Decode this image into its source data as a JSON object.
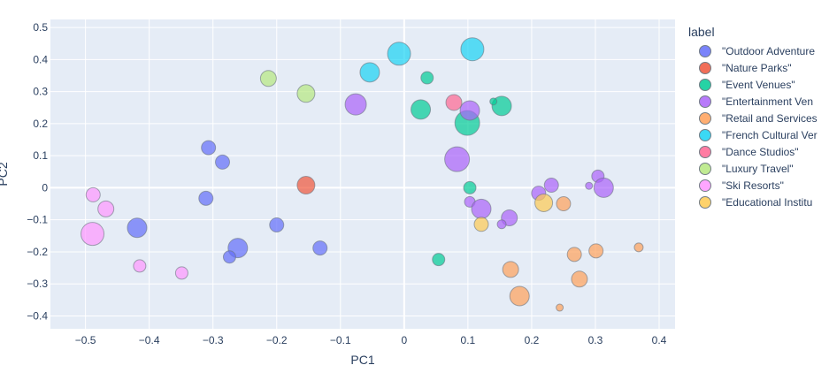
{
  "chart_data": {
    "type": "scatter",
    "xlabel": "PC1",
    "ylabel": "PC2",
    "xlim": [
      -0.555,
      0.425
    ],
    "ylim": [
      -0.44,
      0.525
    ],
    "x_ticks": [
      -0.5,
      -0.4,
      -0.3,
      -0.2,
      -0.1,
      0,
      0.1,
      0.2,
      0.3,
      0.4
    ],
    "x_tick_labels": [
      "−0.5",
      "−0.4",
      "−0.3",
      "−0.2",
      "−0.1",
      "0",
      "0.1",
      "0.2",
      "0.3",
      "0.4"
    ],
    "y_ticks": [
      -0.4,
      -0.3,
      -0.2,
      -0.1,
      0,
      0.1,
      0.2,
      0.3,
      0.4,
      0.5
    ],
    "y_tick_labels": [
      "−0.4",
      "−0.3",
      "−0.2",
      "−0.1",
      "0",
      "0.1",
      "0.2",
      "0.3",
      "0.4",
      "0.5"
    ],
    "grid": true,
    "legend_title": "label",
    "legend_position": "right",
    "series": [
      {
        "name": "\"Outdoor Adventures\"",
        "legend_text": "\"Outdoor Adventure",
        "color": "#636efa",
        "points": [
          [
            -0.307,
            0.125,
            8
          ],
          [
            -0.285,
            0.08,
            8
          ],
          [
            -0.311,
            -0.033,
            8
          ],
          [
            -0.419,
            -0.125,
            11
          ],
          [
            -0.2,
            -0.116,
            8
          ],
          [
            -0.261,
            -0.188,
            11
          ],
          [
            -0.274,
            -0.216,
            7
          ],
          [
            -0.132,
            -0.188,
            8
          ]
        ]
      },
      {
        "name": "\"Nature Parks\"",
        "legend_text": "\"Nature Parks\"",
        "color": "#EF553B",
        "points": [
          [
            -0.154,
            0.008,
            10
          ]
        ]
      },
      {
        "name": "\"Event Venues\"",
        "legend_text": "\"Event Venues\"",
        "color": "#00cc96",
        "points": [
          [
            0.036,
            0.343,
            7
          ],
          [
            0.026,
            0.244,
            11
          ],
          [
            0.153,
            0.255,
            11
          ],
          [
            0.14,
            0.269,
            4
          ],
          [
            0.099,
            0.202,
            14
          ],
          [
            0.103,
            0.0,
            7
          ],
          [
            0.054,
            -0.224,
            7
          ]
        ]
      },
      {
        "name": "\"Entertainment Venues\"",
        "legend_text": "\"Entertainment Ven",
        "color": "#ab63fa",
        "points": [
          [
            -0.076,
            0.26,
            12
          ],
          [
            0.103,
            0.241,
            11
          ],
          [
            0.083,
            0.089,
            14
          ],
          [
            0.103,
            -0.044,
            6
          ],
          [
            0.121,
            -0.066,
            11
          ],
          [
            0.165,
            -0.094,
            9
          ],
          [
            0.153,
            -0.114,
            5
          ],
          [
            0.211,
            -0.017,
            8
          ],
          [
            0.231,
            0.008,
            8
          ],
          [
            0.304,
            0.036,
            7
          ],
          [
            0.29,
            0.006,
            4
          ],
          [
            0.313,
            0.0,
            11
          ]
        ]
      },
      {
        "name": "\"Retail and Services\"",
        "legend_text": "\"Retail and Services",
        "color": "#FFA15A",
        "points": [
          [
            0.25,
            -0.05,
            8
          ],
          [
            0.167,
            -0.255,
            9
          ],
          [
            0.181,
            -0.338,
            11
          ],
          [
            0.267,
            -0.208,
            8
          ],
          [
            0.275,
            -0.285,
            9
          ],
          [
            0.301,
            -0.197,
            8
          ],
          [
            0.368,
            -0.186,
            5
          ],
          [
            0.244,
            -0.374,
            4
          ]
        ]
      },
      {
        "name": "\"French Cultural Venues\"",
        "legend_text": "\"French Cultural Ver",
        "color": "#19d3f3",
        "points": [
          [
            -0.054,
            0.36,
            11
          ],
          [
            -0.008,
            0.418,
            13
          ],
          [
            0.107,
            0.432,
            13
          ]
        ]
      },
      {
        "name": "\"Dance Studios\"",
        "legend_text": "\"Dance Studios\"",
        "color": "#FF6692",
        "points": [
          [
            0.078,
            0.266,
            9
          ]
        ]
      },
      {
        "name": "\"Luxury Travel\"",
        "legend_text": "\"Luxury Travel\"",
        "color": "#B6E880",
        "points": [
          [
            -0.213,
            0.341,
            9
          ],
          [
            -0.154,
            0.294,
            10
          ]
        ]
      },
      {
        "name": "\"Ski Resorts\"",
        "legend_text": "\"Ski Resorts\"",
        "color": "#FF97FF",
        "points": [
          [
            -0.488,
            -0.022,
            8
          ],
          [
            -0.468,
            -0.066,
            9
          ],
          [
            -0.489,
            -0.144,
            13
          ],
          [
            -0.415,
            -0.244,
            7
          ],
          [
            -0.349,
            -0.266,
            7
          ]
        ]
      },
      {
        "name": "\"Educational Institutions\"",
        "legend_text": "\"Educational Institu",
        "color": "#FECB52",
        "points": [
          [
            0.219,
            -0.047,
            10
          ],
          [
            0.121,
            -0.114,
            8
          ]
        ]
      }
    ]
  }
}
